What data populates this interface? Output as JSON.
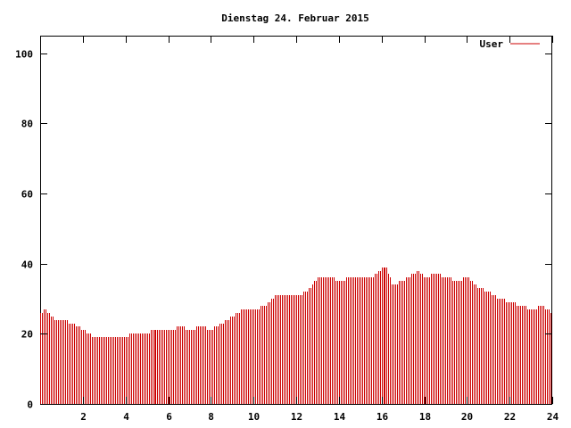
{
  "chart_data": {
    "type": "bar",
    "title": "Dienstag 24. Februar 2015",
    "xlabel": "",
    "ylabel": "",
    "xlim": [
      0,
      24
    ],
    "ylim": [
      0,
      105
    ],
    "xticks": [
      2,
      4,
      6,
      8,
      10,
      12,
      14,
      16,
      18,
      20,
      22,
      24
    ],
    "yticks": [
      0,
      20,
      40,
      60,
      80,
      100
    ],
    "legend_position": "top-right",
    "grid": false,
    "series": [
      {
        "name": "User",
        "color": "#cc0000",
        "control_points": [
          [
            0.0,
            26
          ],
          [
            0.25,
            27
          ],
          [
            0.5,
            25
          ],
          [
            0.75,
            24
          ],
          [
            1.0,
            24
          ],
          [
            1.5,
            23
          ],
          [
            1.75,
            22
          ],
          [
            2.0,
            21
          ],
          [
            2.25,
            20
          ],
          [
            2.5,
            19
          ],
          [
            3.0,
            19
          ],
          [
            3.5,
            19
          ],
          [
            4.0,
            19
          ],
          [
            4.25,
            20
          ],
          [
            5.0,
            20
          ],
          [
            5.25,
            21
          ],
          [
            6.0,
            21
          ],
          [
            6.25,
            21
          ],
          [
            6.5,
            22
          ],
          [
            7.0,
            21
          ],
          [
            7.5,
            22
          ],
          [
            8.0,
            21
          ],
          [
            8.5,
            23
          ],
          [
            9.0,
            25
          ],
          [
            9.5,
            27
          ],
          [
            10.0,
            27
          ],
          [
            10.5,
            28
          ],
          [
            11.0,
            31
          ],
          [
            11.5,
            31
          ],
          [
            12.0,
            31
          ],
          [
            12.5,
            32
          ],
          [
            13.0,
            36
          ],
          [
            13.5,
            36
          ],
          [
            14.0,
            35
          ],
          [
            14.5,
            36
          ],
          [
            15.0,
            36
          ],
          [
            15.5,
            36
          ],
          [
            16.0,
            39
          ],
          [
            16.25,
            39
          ],
          [
            16.5,
            34
          ],
          [
            17.0,
            35
          ],
          [
            17.5,
            37
          ],
          [
            17.75,
            38
          ],
          [
            18.0,
            36
          ],
          [
            18.5,
            37
          ],
          [
            19.0,
            36
          ],
          [
            19.5,
            35
          ],
          [
            20.0,
            36
          ],
          [
            20.5,
            33
          ],
          [
            21.0,
            32
          ],
          [
            21.5,
            30
          ],
          [
            22.0,
            29
          ],
          [
            22.5,
            28
          ],
          [
            23.0,
            27
          ],
          [
            23.5,
            28
          ],
          [
            24.0,
            26
          ]
        ],
        "bar_spacing_hours": 0.0833
      }
    ]
  }
}
